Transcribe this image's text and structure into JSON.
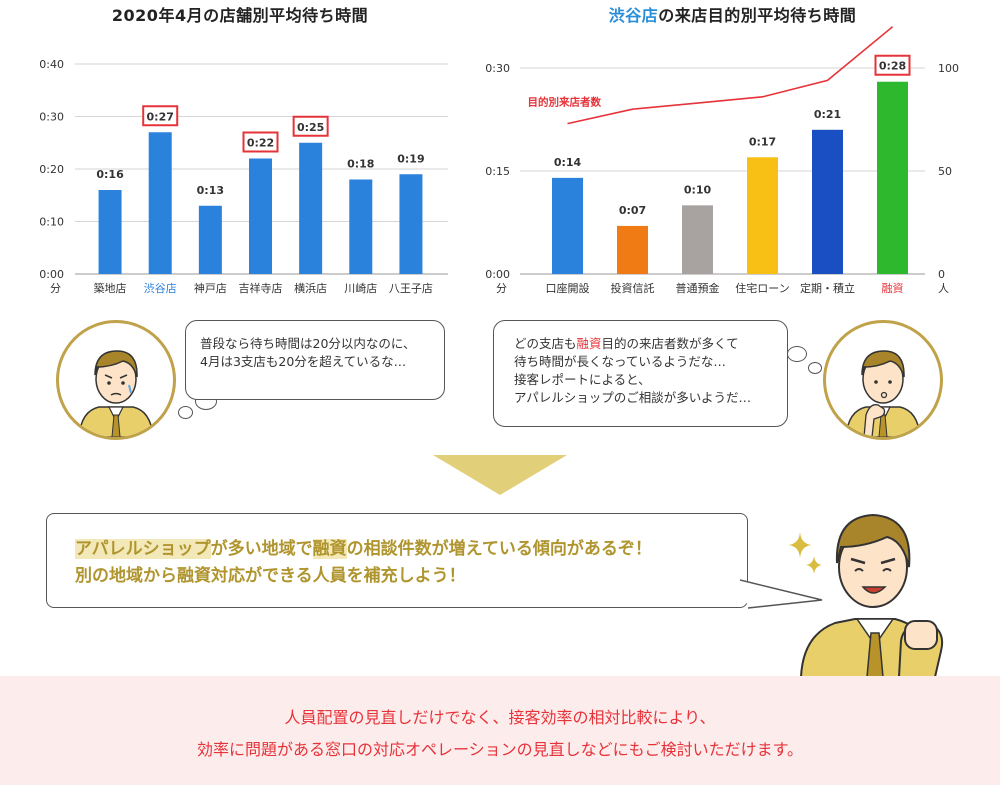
{
  "colors": {
    "bar_blue": "#2a82dc",
    "highlight_border": "#e6333a",
    "footer_bg": "#fdecec",
    "accent_gold": "#b0952f",
    "line_red": "#e6333a"
  },
  "left_chart": {
    "title": "2020年4月の店舗別平均待ち時間"
  },
  "right_chart": {
    "title_highlight": "渋谷店",
    "title_rest": "の来店目的別平均待ち時間"
  },
  "chart_data": [
    {
      "type": "bar",
      "title": "2020年4月の店舗別平均待ち時間",
      "categories": [
        "築地店",
        "渋谷店",
        "神戸店",
        "吉祥寺店",
        "横浜店",
        "川崎店",
        "八王子店"
      ],
      "values": [
        16,
        27,
        13,
        22,
        25,
        18,
        19
      ],
      "value_labels": [
        "0:16",
        "0:27",
        "0:13",
        "0:22",
        "0:25",
        "0:18",
        "0:19"
      ],
      "highlighted_labels": [
        1,
        3,
        4
      ],
      "highlighted_category": 1,
      "y_unit": "分",
      "y_ticks": [
        0,
        10,
        20,
        30,
        40
      ],
      "y_tick_labels": [
        "0:00",
        "0:10",
        "0:20",
        "0:30",
        "0:40"
      ],
      "ylim": [
        0,
        40
      ],
      "grid": true,
      "bar_color": "#2a82dc"
    },
    {
      "type": "bar",
      "title": "渋谷店の来店目的別平均待ち時間",
      "categories": [
        "口座開設",
        "投資信託",
        "普通預金",
        "住宅ローン",
        "定期・積立",
        "融資"
      ],
      "values": [
        14,
        7,
        10,
        17,
        21,
        28
      ],
      "value_labels": [
        "0:14",
        "0:07",
        "0:10",
        "0:17",
        "0:21",
        "0:28"
      ],
      "bar_colors": [
        "#2a82dc",
        "#f07a14",
        "#a8a2a0",
        "#f8c014",
        "#1a4fc4",
        "#2eb82e"
      ],
      "highlighted_labels": [
        5
      ],
      "highlighted_category": 5,
      "y_unit": "分",
      "y_ticks": [
        0,
        15,
        30
      ],
      "y_tick_labels": [
        "0:00",
        "0:15",
        "0:30"
      ],
      "ylim": [
        0,
        30
      ],
      "y2_unit": "人",
      "y2_ticks": [
        0,
        50,
        100
      ],
      "y2_tick_labels": [
        "0",
        "50",
        "100"
      ],
      "y2lim": [
        0,
        100
      ],
      "line_series": {
        "name": "目的別来店者数",
        "values": [
          73,
          80,
          83,
          86,
          94,
          120
        ],
        "color": "#e6333a"
      },
      "grid": true
    }
  ],
  "bubble_left": {
    "lines": [
      "普段なら待ち時間は20分以内なのに、",
      "4月は3支店も20分を超えているな…"
    ]
  },
  "bubble_right": {
    "line1_pre": "どの支店も",
    "line1_red": "融資",
    "line1_post": "目的の来店者数が多くて",
    "line2": "待ち時間が長くなっているようだな…",
    "line3": "接客レポートによると、",
    "line4": "アパレルショップのご相談が多いようだ…"
  },
  "big_bubble": {
    "mark1": "アパレルショップ",
    "text1": "が多い地域で",
    "mark2": "融資",
    "text2": "の相談件数が増えている傾向があるぞ！",
    "line2": "別の地域から融資対応ができる人員を補充しよう！"
  },
  "footer": {
    "line1": "人員配置の見直しだけでなく、接客効率の相対比較により、",
    "line2": "効率に問題がある窓口の対応オペレーションの見直しなどにもご検討いただけます。"
  },
  "icons": {
    "worried": "worried-man-icon",
    "thinking": "thinking-man-icon",
    "excited": "excited-man-icon",
    "sparkle": "sparkle-icon"
  }
}
